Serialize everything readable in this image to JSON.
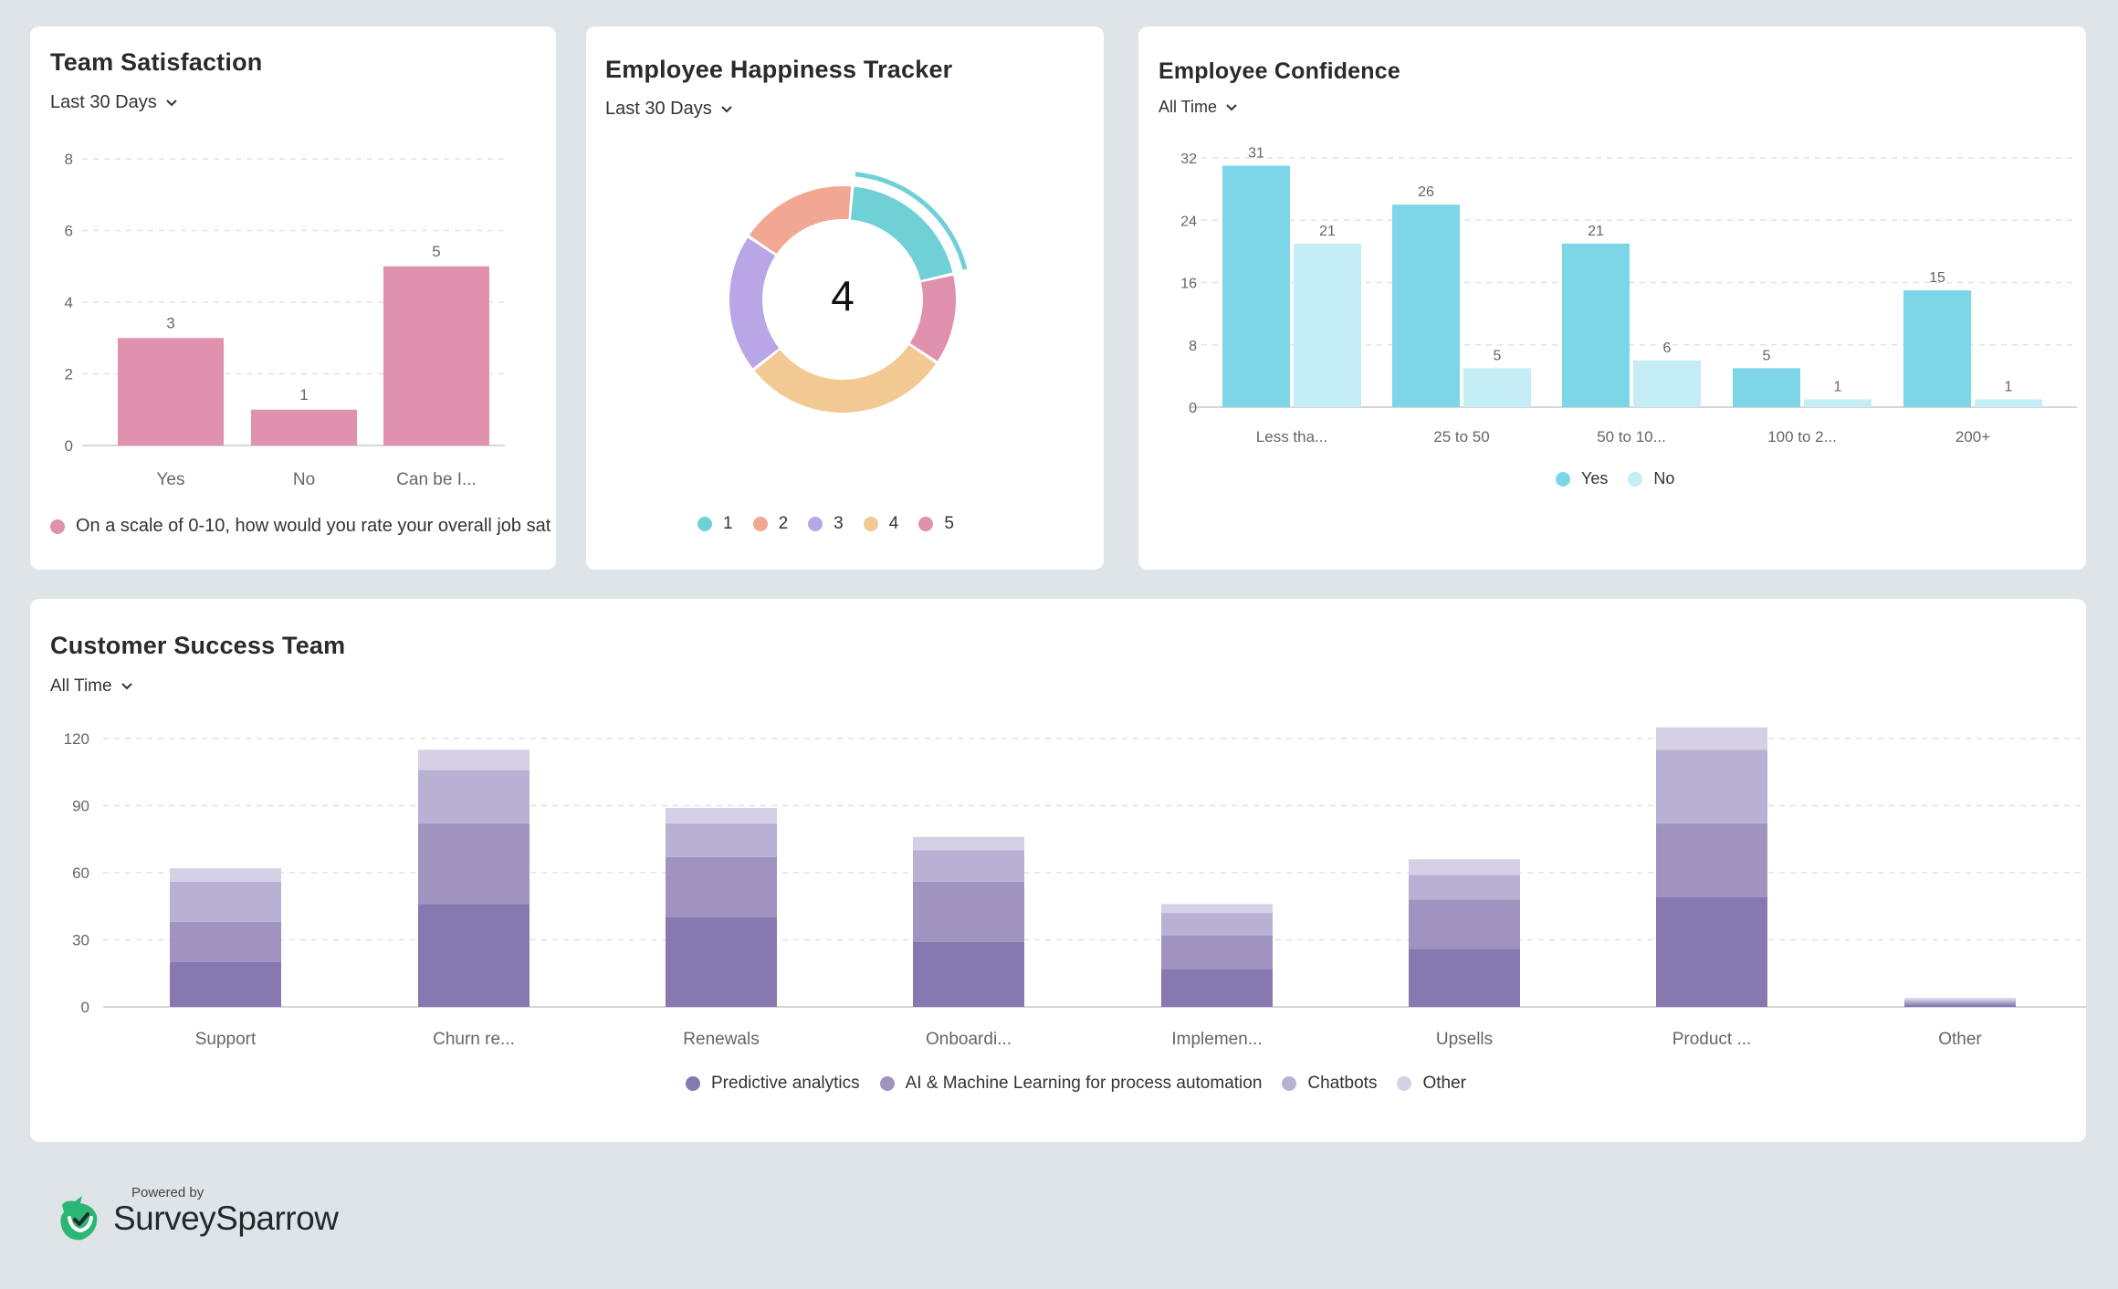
{
  "team_satisfaction": {
    "title": "Team Satisfaction",
    "filter": "Last 30 Days",
    "legend": "On a scale of 0-10, how would you rate your overall job sat",
    "color": "#df91ad",
    "chart_data": {
      "type": "bar",
      "categories": [
        "Yes",
        "No",
        "Can be I..."
      ],
      "values": [
        3,
        1,
        5
      ],
      "ylim": [
        0,
        8
      ],
      "yticks": [
        0,
        2,
        4,
        6,
        8
      ],
      "grid": true
    }
  },
  "happiness": {
    "title": "Employee Happiness Tracker",
    "filter": "Last 30 Days",
    "center_value": "4",
    "chart_data": {
      "type": "pie",
      "style": "donut",
      "labels": [
        "1",
        "2",
        "3",
        "4",
        "5"
      ],
      "values": [
        20,
        17,
        20,
        30,
        13
      ],
      "colors": [
        "#6fd0d6",
        "#f2a793",
        "#b8a6e6",
        "#f2c993",
        "#df91ad"
      ],
      "highlighted": "1"
    }
  },
  "confidence": {
    "title": "Employee Confidence",
    "filter": "All Time",
    "chart_data": {
      "type": "bar",
      "categories": [
        "Less tha...",
        "25 to 50",
        "50 to 10...",
        "100 to 2...",
        "200+"
      ],
      "series": [
        {
          "name": "Yes",
          "values": [
            31,
            26,
            21,
            5,
            15
          ],
          "color": "#7dd6e8"
        },
        {
          "name": "No",
          "values": [
            21,
            5,
            6,
            1,
            1
          ],
          "color": "#c4edf5"
        }
      ],
      "ylim": [
        0,
        32
      ],
      "yticks": [
        0,
        8,
        16,
        24,
        32
      ],
      "grid": true,
      "legend_position": "bottom"
    }
  },
  "customer_success": {
    "title": "Customer Success Team",
    "filter": "All Time",
    "chart_data": {
      "type": "bar",
      "stacked": true,
      "categories": [
        "Support",
        "Churn re...",
        "Renewals",
        "Onboardi...",
        "Implemen...",
        "Upsells",
        "Product ...",
        "Other"
      ],
      "series": [
        {
          "name": "Predictive analytics",
          "values": [
            20,
            46,
            40,
            29,
            17,
            26,
            49,
            1
          ],
          "color": "#8678b0"
        },
        {
          "name": "AI & Machine Learning for process automation",
          "values": [
            18,
            36,
            27,
            27,
            15,
            22,
            33,
            1
          ],
          "color": "#a093c0"
        },
        {
          "name": "Chatbots",
          "values": [
            18,
            24,
            15,
            14,
            10,
            11,
            33,
            1
          ],
          "color": "#b9b1d4"
        },
        {
          "name": "Other",
          "values": [
            6,
            9,
            7,
            6,
            4,
            7,
            10,
            1
          ],
          "color": "#d6d0e6"
        }
      ],
      "ylim": [
        0,
        120
      ],
      "yticks": [
        0,
        30,
        60,
        90,
        120
      ],
      "grid": true,
      "legend_position": "bottom"
    }
  },
  "footer": {
    "powered_by": "Powered by",
    "brand": "SurveySparrow",
    "brand_color": "#2bb673"
  }
}
